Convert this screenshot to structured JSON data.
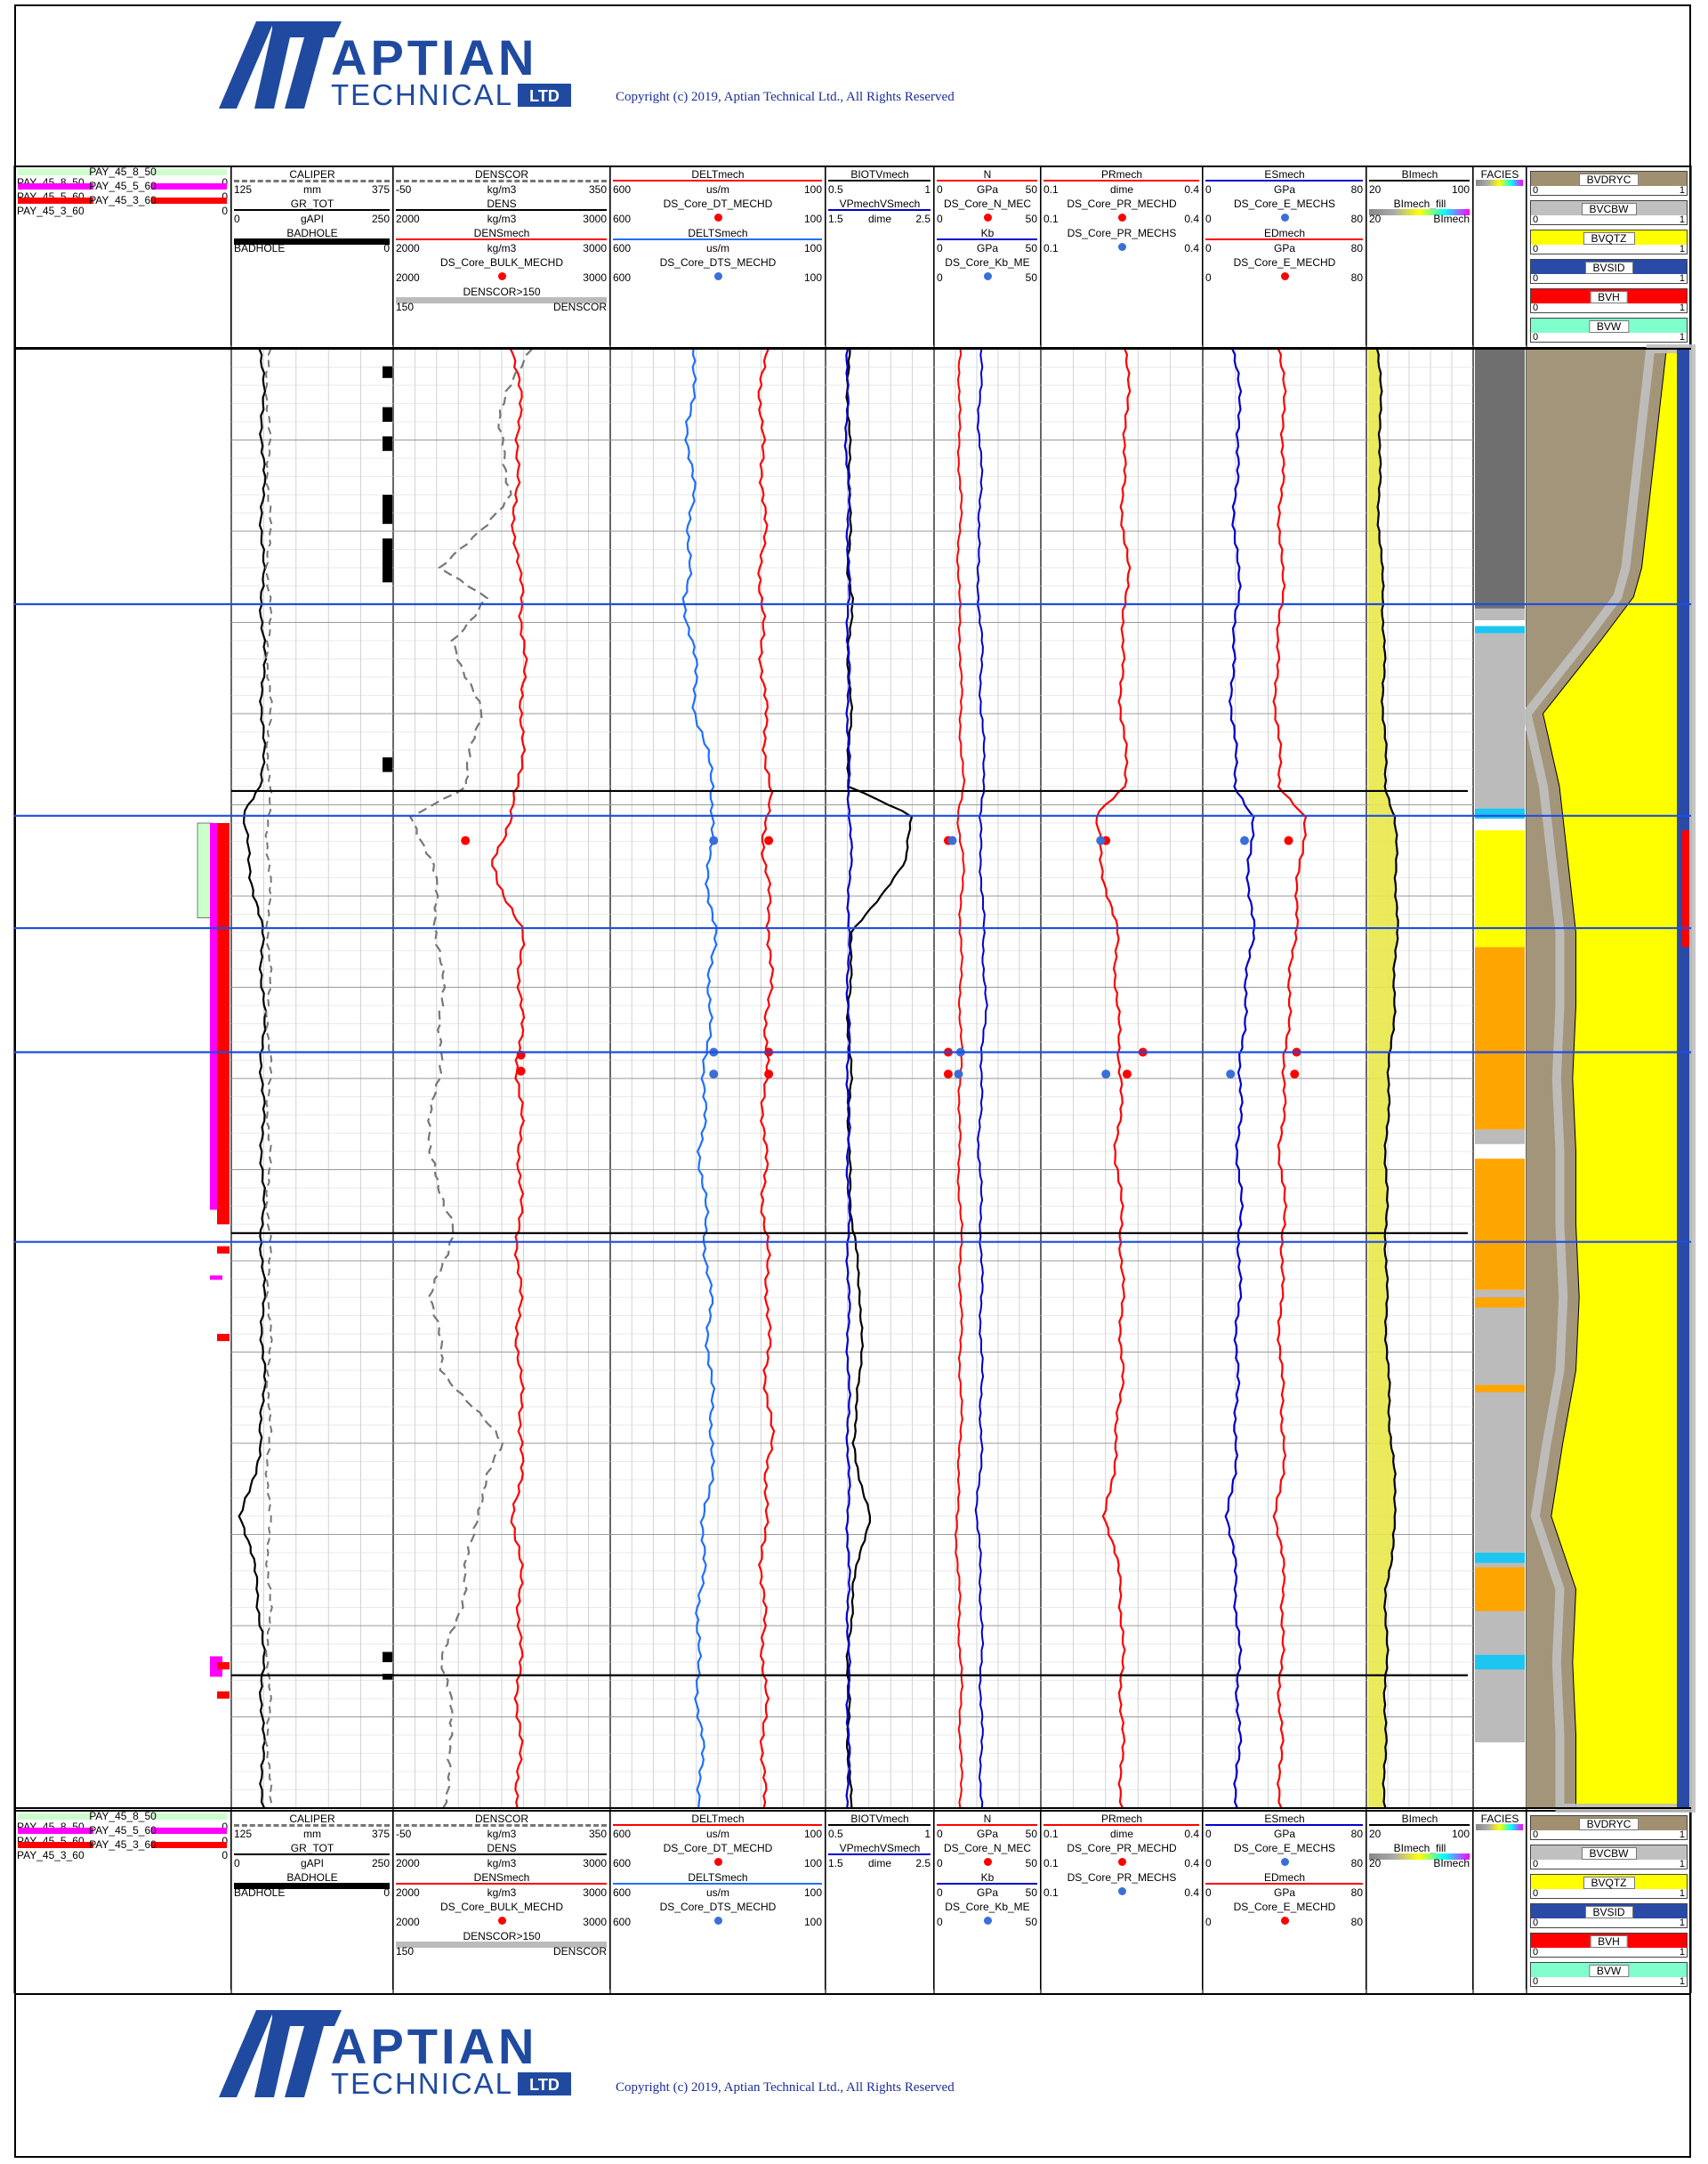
{
  "brand": {
    "name_line1": "APTIAN",
    "name_line2": "TECHNICAL",
    "name_suffix": "LTD",
    "copyright": "Copyright (c) 2019, Aptian Technical Ltd., All Rights Reserved",
    "color": "#1f4aa0"
  },
  "tracks": [
    {
      "id": "pay",
      "curves": [
        {
          "name": "PAY_45_8_50",
          "left": "PAY_45_8_50",
          "right": "0",
          "color": "#ccffcc"
        },
        {
          "name": "PAY_45_5_60",
          "left": "PAY_45_5_60",
          "right": "0",
          "color": "#ff00ff"
        },
        {
          "name": "PAY_45_3_60",
          "left": "PAY_45_3_60",
          "right": "0",
          "color": "#ff0000"
        }
      ]
    },
    {
      "id": "caliper",
      "curves": [
        {
          "name": "CALIPER",
          "unit": "mm",
          "left": "125",
          "right": "375",
          "color": "#777777",
          "style": "dashed"
        },
        {
          "name": "GR_TOT",
          "unit": "gAPI",
          "left": "0",
          "right": "250",
          "color": "#000000"
        },
        {
          "name": "BADHOLE",
          "unit": "",
          "left": "BADHOLE",
          "right": "0",
          "color": "#000000",
          "style": "fill"
        }
      ]
    },
    {
      "id": "density",
      "curves": [
        {
          "name": "DENSCOR",
          "unit": "kg/m3",
          "left": "-50",
          "right": "350",
          "color": "#777777",
          "style": "dashed"
        },
        {
          "name": "DENS",
          "unit": "kg/m3",
          "left": "2000",
          "right": "3000",
          "color": "#000000"
        },
        {
          "name": "DENSmech",
          "unit": "kg/m3",
          "left": "2000",
          "right": "3000",
          "color": "#ff0000"
        },
        {
          "name": "DS_Core_BULK_MECHD",
          "unit": "",
          "left": "2000",
          "right": "3000",
          "color": "#ff0000",
          "style": "dot"
        },
        {
          "name": "DENSCOR>150",
          "unit": "",
          "left": "150",
          "right": "DENSCOR",
          "color": "#bbbbbb",
          "style": "fill"
        }
      ]
    },
    {
      "id": "sonic",
      "curves": [
        {
          "name": "DELTmech",
          "unit": "us/m",
          "left": "600",
          "right": "100",
          "color": "#ff0000"
        },
        {
          "name": "DS_Core_DT_MECHD",
          "unit": "",
          "left": "600",
          "right": "100",
          "color": "#ff0000",
          "style": "dot"
        },
        {
          "name": "DELTSmech",
          "unit": "us/m",
          "left": "600",
          "right": "100",
          "color": "#1f6fff"
        },
        {
          "name": "DS_Core_DTS_MECHD",
          "unit": "",
          "left": "600",
          "right": "100",
          "color": "#3a6fd8",
          "style": "dot"
        }
      ]
    },
    {
      "id": "biot",
      "curves": [
        {
          "name": "BIOTVmech",
          "unit": "",
          "left": "0.5",
          "right": "1",
          "color": "#000000"
        },
        {
          "name": "VPmechVSmech",
          "unit": "dime",
          "left": "1.5",
          "right": "2.5",
          "color": "#0000cc"
        }
      ]
    },
    {
      "id": "nkb",
      "curves": [
        {
          "name": "N",
          "unit": "GPa",
          "left": "0",
          "right": "50",
          "color": "#ff0000"
        },
        {
          "name": "DS_Core_N_MEC",
          "unit": "",
          "left": "0",
          "right": "50",
          "color": "#ff0000",
          "style": "dot"
        },
        {
          "name": "Kb",
          "unit": "GPa",
          "left": "0",
          "right": "50",
          "color": "#0000cc"
        },
        {
          "name": "DS_Core_Kb_ME",
          "unit": "",
          "left": "0",
          "right": "50",
          "color": "#3a6fd8",
          "style": "dot"
        }
      ]
    },
    {
      "id": "pr",
      "curves": [
        {
          "name": "PRmech",
          "unit": "dime",
          "left": "0.1",
          "right": "0.4",
          "color": "#ff0000"
        },
        {
          "name": "DS_Core_PR_MECHD",
          "unit": "",
          "left": "0.1",
          "right": "0.4",
          "color": "#ff0000",
          "style": "dot"
        },
        {
          "name": "DS_Core_PR_MECHS",
          "unit": "",
          "left": "0.1",
          "right": "0.4",
          "color": "#3a6fd8",
          "style": "dot"
        }
      ]
    },
    {
      "id": "es",
      "curves": [
        {
          "name": "ESmech",
          "unit": "GPa",
          "left": "0",
          "right": "80",
          "color": "#0000cc"
        },
        {
          "name": "DS_Core_E_MECHS",
          "unit": "",
          "left": "0",
          "right": "80",
          "color": "#3a6fd8",
          "style": "dot"
        },
        {
          "name": "EDmech",
          "unit": "GPa",
          "left": "0",
          "right": "80",
          "color": "#ff0000"
        },
        {
          "name": "DS_Core_E_MECHD",
          "unit": "",
          "left": "0",
          "right": "80",
          "color": "#ff0000",
          "style": "dot"
        }
      ]
    },
    {
      "id": "bi",
      "curves": [
        {
          "name": "BImech",
          "unit": "",
          "left": "20",
          "right": "100",
          "color": "#000000"
        },
        {
          "name": "BImech_fill",
          "unit": "",
          "left": "20",
          "right": "BImech",
          "color": "#ffff00",
          "style": "spectrum"
        }
      ]
    },
    {
      "id": "facies",
      "curves": [
        {
          "name": "FACIES",
          "unit": "",
          "left": "",
          "right": "",
          "color": "#ffa500",
          "style": "spectrum"
        }
      ]
    },
    {
      "id": "bv",
      "curves": [
        {
          "name": "BVDRYC",
          "left": "0",
          "right": "1",
          "color": "#a09070"
        },
        {
          "name": "BVCBW",
          "left": "0",
          "right": "1",
          "color": "#c0c0c0"
        },
        {
          "name": "BVQTZ",
          "left": "0",
          "right": "1",
          "color": "#ffff00"
        },
        {
          "name": "BVSID",
          "left": "0",
          "right": "1",
          "color": "#2a4aa8"
        },
        {
          "name": "BVH",
          "left": "0",
          "right": "1",
          "color": "#ff0000"
        },
        {
          "name": "BVW",
          "left": "0",
          "right": "1",
          "color": "#80ffcc"
        }
      ]
    }
  ],
  "chart_data": {
    "type": "line",
    "title": "",
    "depth_direction": "down",
    "track_scales": {
      "CALIPER": [
        125,
        375
      ],
      "GR_TOT": [
        0,
        250
      ],
      "DENSCOR": [
        -50,
        350
      ],
      "DENS": [
        2000,
        3000
      ],
      "DENSmech": [
        2000,
        3000
      ],
      "DELTmech": [
        600,
        100
      ],
      "DELTSmech": [
        600,
        100
      ],
      "BIOTVmech": [
        0.5,
        1
      ],
      "VPmechVSmech": [
        1.5,
        2.5
      ],
      "N": [
        0,
        50
      ],
      "Kb": [
        0,
        50
      ],
      "PRmech": [
        0.1,
        0.4
      ],
      "ESmech": [
        0,
        80
      ],
      "EDmech": [
        0,
        80
      ],
      "BImech": [
        20,
        100
      ]
    },
    "depth_fraction": [
      0.0,
      0.05,
      0.1,
      0.15,
      0.17,
      0.2,
      0.25,
      0.3,
      0.32,
      0.35,
      0.4,
      0.45,
      0.5,
      0.55,
      0.6,
      0.65,
      0.7,
      0.75,
      0.8,
      0.85,
      0.9,
      0.95,
      1.0
    ],
    "series": [
      {
        "name": "GR_TOT",
        "values": [
          45,
          47,
          47,
          46,
          46,
          48,
          47,
          46,
          15,
          25,
          45,
          48,
          46,
          47,
          46,
          47,
          48,
          45,
          14,
          40,
          47,
          46,
          48
        ]
      },
      {
        "name": "CALIPER",
        "values": [
          180,
          180,
          182,
          181,
          182,
          181,
          182,
          181,
          181,
          181,
          182,
          181,
          182,
          181,
          181,
          182,
          182,
          181,
          181,
          182,
          181,
          181,
          182
        ]
      },
      {
        "name": "DENSmech",
        "values": [
          2560,
          2590,
          2560,
          2570,
          2600,
          2600,
          2600,
          2580,
          2550,
          2450,
          2590,
          2590,
          2580,
          2590,
          2580,
          2580,
          2580,
          2600,
          2560,
          2590,
          2580,
          2580,
          2580
        ]
      },
      {
        "name": "DENSCOR",
        "values": [
          200,
          140,
          170,
          40,
          120,
          60,
          110,
          80,
          -20,
          20,
          30,
          40,
          30,
          10,
          60,
          20,
          40,
          150,
          100,
          80,
          40,
          60,
          40
        ]
      },
      {
        "name": "DELTSmech",
        "values": [
          400,
          420,
          410,
          420,
          430,
          410,
          400,
          360,
          360,
          375,
          360,
          370,
          380,
          390,
          380,
          370,
          370,
          360,
          380,
          390,
          400,
          390,
          390
        ]
      },
      {
        "name": "DELTmech",
        "values": [
          240,
          250,
          240,
          245,
          250,
          245,
          240,
          230,
          235,
          240,
          225,
          230,
          240,
          240,
          240,
          230,
          235,
          225,
          240,
          245,
          240,
          240,
          245
        ]
      },
      {
        "name": "BIOTVmech",
        "values": [
          0.6,
          0.6,
          0.61,
          0.6,
          0.62,
          0.6,
          0.61,
          0.6,
          0.9,
          0.88,
          0.62,
          0.6,
          0.61,
          0.6,
          0.62,
          0.66,
          0.66,
          0.62,
          0.7,
          0.62,
          0.6,
          0.6,
          0.61
        ]
      },
      {
        "name": "VPmechVSmech",
        "values": [
          1.7,
          1.68,
          1.7,
          1.7,
          1.7,
          1.7,
          1.7,
          1.7,
          1.72,
          1.72,
          1.7,
          1.7,
          1.7,
          1.7,
          1.7,
          1.7,
          1.7,
          1.7,
          1.7,
          1.7,
          1.7,
          1.7,
          1.7
        ]
      },
      {
        "name": "N",
        "values": [
          12,
          11,
          12,
          11,
          11,
          12,
          12,
          13,
          11,
          13,
          12,
          12,
          12,
          11,
          12,
          12,
          12,
          12,
          10,
          11,
          12,
          12,
          12
        ]
      },
      {
        "name": "Kb",
        "values": [
          22,
          21,
          22,
          20,
          21,
          22,
          22,
          24,
          21,
          22,
          23,
          24,
          22,
          21,
          22,
          22,
          22,
          22,
          20,
          22,
          22,
          22,
          22
        ]
      },
      {
        "name": "PRmech",
        "values": [
          0.26,
          0.26,
          0.25,
          0.26,
          0.26,
          0.25,
          0.25,
          0.26,
          0.2,
          0.21,
          0.24,
          0.24,
          0.25,
          0.24,
          0.25,
          0.25,
          0.25,
          0.24,
          0.22,
          0.25,
          0.25,
          0.25,
          0.25
        ]
      },
      {
        "name": "ESmech",
        "values": [
          15,
          18,
          15,
          16,
          18,
          14,
          14,
          16,
          24,
          22,
          24,
          20,
          18,
          17,
          18,
          17,
          16,
          16,
          12,
          16,
          17,
          17,
          16
        ]
      },
      {
        "name": "EDmech",
        "values": [
          38,
          40,
          38,
          38,
          40,
          36,
          36,
          38,
          50,
          48,
          45,
          42,
          40,
          38,
          40,
          38,
          38,
          40,
          36,
          40,
          38,
          38,
          38
        ]
      },
      {
        "name": "BImech",
        "values": [
          28,
          30,
          28,
          30,
          32,
          32,
          32,
          34,
          40,
          42,
          42,
          40,
          36,
          34,
          34,
          34,
          35,
          38,
          42,
          34,
          34,
          33,
          33
        ]
      }
    ],
    "core_points": [
      {
        "name": "DS_Core_BULK_MECHD",
        "depth": [
          0.337,
          0.484,
          0.495
        ],
        "values": [
          2330,
          2590,
          2590
        ]
      },
      {
        "name": "DS_Core_DT_MECHD",
        "depth": [
          0.337,
          0.482,
          0.497
        ],
        "values": [
          230,
          230,
          230
        ]
      },
      {
        "name": "DS_Core_DTS_MECHD",
        "depth": [
          0.337,
          0.482,
          0.497
        ],
        "values": [
          360,
          360,
          360
        ]
      },
      {
        "name": "DS_Core_N_MEC",
        "depth": [
          0.337,
          0.482,
          0.497
        ],
        "values": [
          6,
          6,
          6
        ]
      },
      {
        "name": "DS_Core_Kb_ME",
        "depth": [
          0.337,
          0.482,
          0.497
        ],
        "values": [
          8,
          12,
          11
        ]
      },
      {
        "name": "DS_Core_PR_MECHD",
        "depth": [
          0.337,
          0.482,
          0.497
        ],
        "values": [
          0.22,
          0.29,
          0.26
        ]
      },
      {
        "name": "DS_Core_PR_MECHS",
        "depth": [
          0.337,
          0.497
        ],
        "values": [
          0.21,
          0.22
        ]
      },
      {
        "name": "DS_Core_E_MECHS",
        "depth": [
          0.337,
          0.497
        ],
        "values": [
          20,
          13
        ]
      },
      {
        "name": "DS_Core_E_MECHD",
        "depth": [
          0.337,
          0.482,
          0.497
        ],
        "values": [
          42,
          46,
          45
        ]
      }
    ],
    "zones": [
      {
        "name": "BADHOLE",
        "depth": [
          [
            0.012,
            0.02
          ],
          [
            0.04,
            0.05
          ],
          [
            0.06,
            0.07
          ],
          [
            0.1,
            0.12
          ],
          [
            0.13,
            0.16
          ],
          [
            0.28,
            0.29
          ],
          [
            0.893,
            0.9
          ],
          [
            0.908,
            0.912
          ]
        ]
      },
      {
        "name": "PAY_45_8_50",
        "depth": [
          [
            0.325,
            0.39
          ]
        ]
      },
      {
        "name": "PAY_45_5_60",
        "depth": [
          [
            0.325,
            0.59
          ],
          [
            0.635,
            0.638
          ],
          [
            0.896,
            0.91
          ]
        ]
      },
      {
        "name": "PAY_45_3_60",
        "depth": [
          [
            0.325,
            0.6
          ],
          [
            0.615,
            0.62
          ],
          [
            0.675,
            0.68
          ],
          [
            0.9,
            0.905
          ],
          [
            0.92,
            0.925
          ]
        ]
      }
    ],
    "facies": [
      {
        "range": [
          0.0,
          0.178
        ],
        "color": "#6f6f6f"
      },
      {
        "range": [
          0.178,
          0.186
        ],
        "color": "#bbbbbb"
      },
      {
        "range": [
          0.19,
          0.195
        ],
        "color": "#1cc6f0"
      },
      {
        "range": [
          0.195,
          0.315
        ],
        "color": "#bbbbbb"
      },
      {
        "range": [
          0.315,
          0.322
        ],
        "color": "#1cc6f0"
      },
      {
        "range": [
          0.33,
          0.41
        ],
        "color": "#ffff00"
      },
      {
        "range": [
          0.41,
          0.535
        ],
        "color": "#ffa500"
      },
      {
        "range": [
          0.535,
          0.545
        ],
        "color": "#bbbbbb"
      },
      {
        "range": [
          0.555,
          0.6
        ],
        "color": "#ffa500"
      },
      {
        "range": [
          0.6,
          0.645
        ],
        "color": "#ffa500"
      },
      {
        "range": [
          0.645,
          0.955
        ],
        "color": "#bbbbbb"
      },
      {
        "range": [
          0.65,
          0.657
        ],
        "color": "#ffa500"
      },
      {
        "range": [
          0.71,
          0.715
        ],
        "color": "#ffa500"
      },
      {
        "range": [
          0.825,
          0.832
        ],
        "color": "#1cc6f0"
      },
      {
        "range": [
          0.835,
          0.865
        ],
        "color": "#ffa500"
      },
      {
        "range": [
          0.895,
          0.905
        ],
        "color": "#1cc6f0"
      }
    ],
    "zone_lines": {
      "blue": [
        0.175,
        0.32,
        0.397,
        0.482,
        0.612
      ],
      "black": [
        0.303,
        0.606,
        0.909
      ]
    },
    "grid": true,
    "legend": "top"
  }
}
